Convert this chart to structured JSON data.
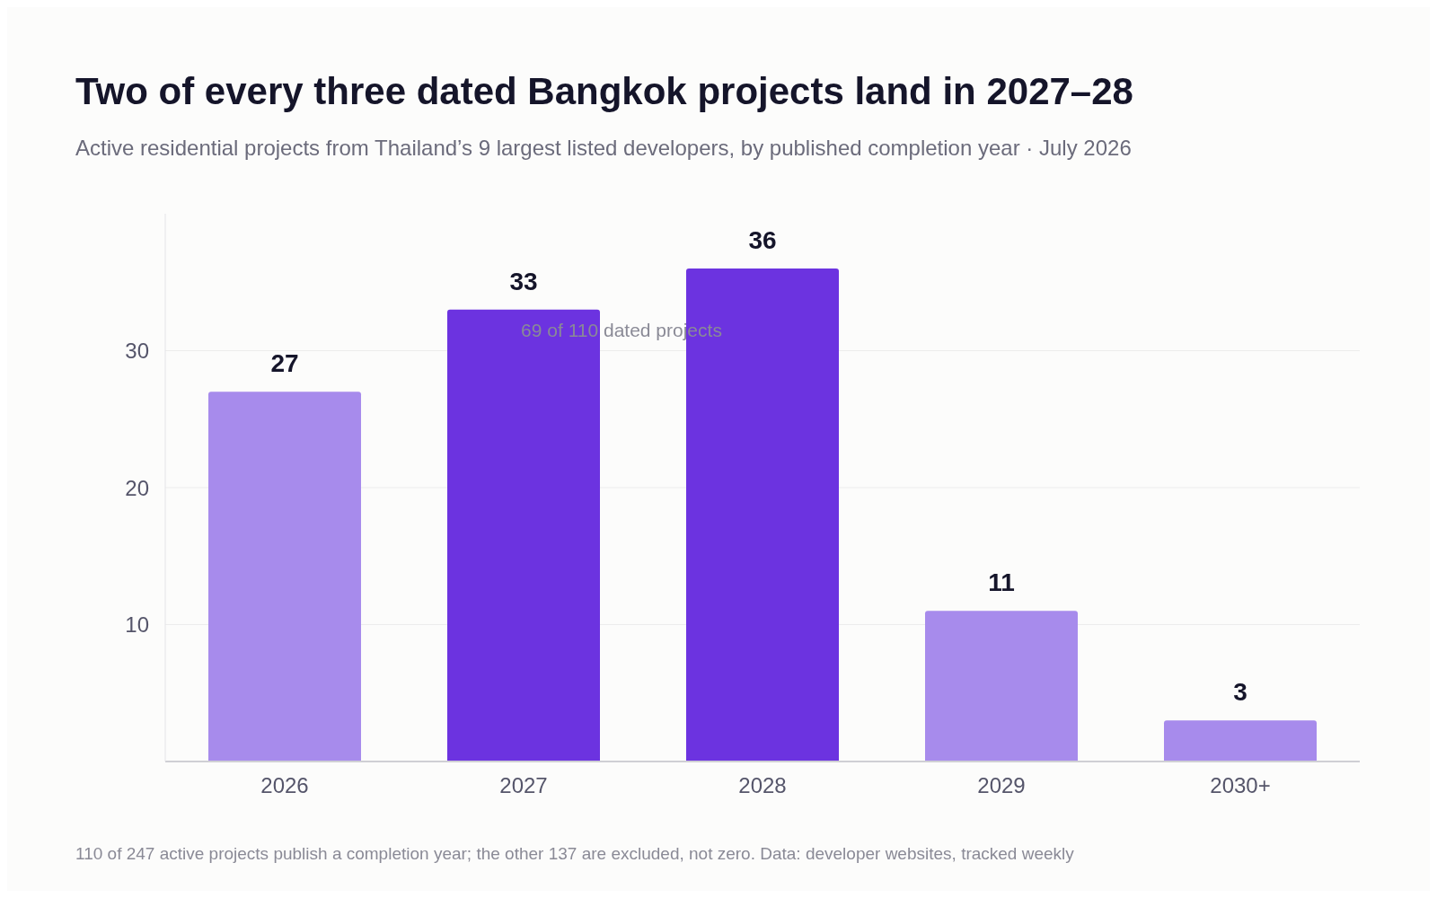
{
  "chart_data": {
    "type": "bar",
    "title": "Two of every three dated Bangkok projects land in 2027–28",
    "subtitle": "Active residential projects from Thailand’s 9 largest listed developers, by published completion year · July 2026",
    "categories": [
      "2026",
      "2027",
      "2028",
      "2029",
      "2030+"
    ],
    "values": [
      27,
      33,
      36,
      11,
      3
    ],
    "colors": [
      "#a78bec",
      "#6c33e0",
      "#6c33e0",
      "#a78bec",
      "#a78bec"
    ],
    "ylim": [
      0,
      40
    ],
    "yticks": [
      10,
      20,
      30
    ],
    "grid": "y",
    "data_labels": true,
    "annotations": [
      "69 of 110 dated projects",
      "110 of 247 active projects publish a completion year; the other 137 are excluded, not zero.   Data: developer websites, tracked weekly"
    ]
  }
}
